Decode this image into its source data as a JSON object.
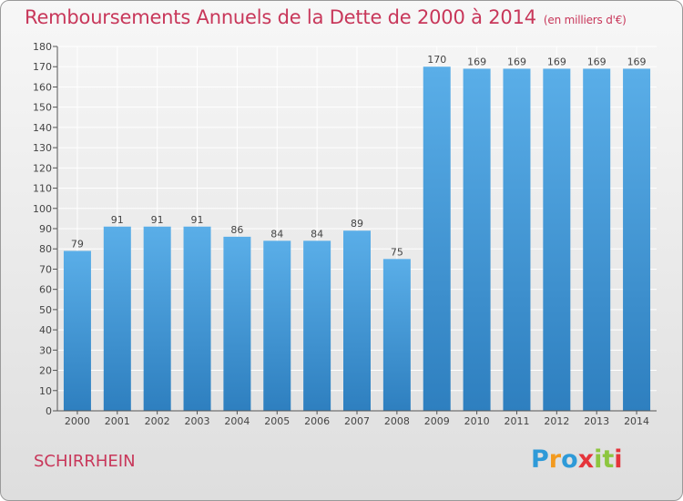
{
  "title": "Remboursements Annuels de la Dette de 2000 à 2014",
  "unit": "(en milliers d'€)",
  "commune": "SCHIRRHEIN",
  "logo_text": "Proxiti",
  "colors": {
    "title": "#c8375a",
    "bar_light": "#5aaee8",
    "bar_dark": "#2e7fbf",
    "axis": "#444444"
  },
  "chart_data": {
    "type": "bar",
    "categories": [
      "2000",
      "2001",
      "2002",
      "2003",
      "2004",
      "2005",
      "2006",
      "2007",
      "2008",
      "2009",
      "2010",
      "2011",
      "2012",
      "2013",
      "2014"
    ],
    "values": [
      79,
      91,
      91,
      91,
      86,
      84,
      84,
      89,
      75,
      170,
      169,
      169,
      169,
      169,
      169
    ],
    "ylim": [
      0,
      180
    ],
    "yticks": [
      0,
      10,
      20,
      30,
      40,
      50,
      60,
      70,
      80,
      90,
      100,
      110,
      120,
      130,
      140,
      150,
      160,
      170,
      180
    ],
    "grid": true,
    "legend": "none",
    "xlabel": "",
    "ylabel": ""
  }
}
